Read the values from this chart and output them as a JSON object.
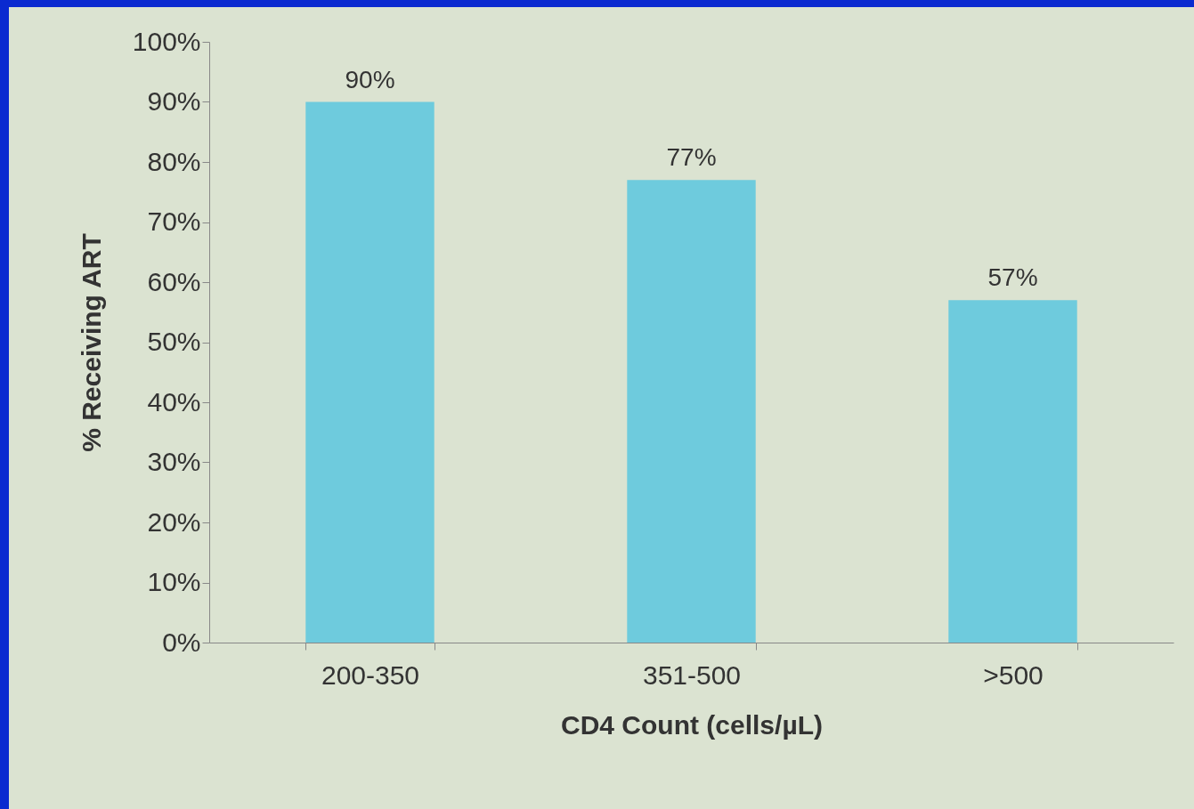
{
  "chart_data": {
    "type": "bar",
    "xlabel": "CD4 Count (cells/µL)",
    "ylabel": "% Receiving ART",
    "categories": [
      "200-350",
      "351-500",
      ">500"
    ],
    "values": [
      90,
      77,
      57
    ],
    "value_labels": [
      "90%",
      "77%",
      "57%"
    ],
    "color": "#6ecbdd",
    "ylim": [
      0,
      100
    ],
    "yticks": [
      {
        "value": 0,
        "label": "0%"
      },
      {
        "value": 10,
        "label": "10%"
      },
      {
        "value": 20,
        "label": "20%"
      },
      {
        "value": 30,
        "label": "30%"
      },
      {
        "value": 40,
        "label": "40%"
      },
      {
        "value": 50,
        "label": "50%"
      },
      {
        "value": 60,
        "label": "60%"
      },
      {
        "value": 70,
        "label": "70%"
      },
      {
        "value": 80,
        "label": "80%"
      },
      {
        "value": 90,
        "label": "90%"
      },
      {
        "value": 100,
        "label": "100%"
      }
    ],
    "grid": false
  }
}
